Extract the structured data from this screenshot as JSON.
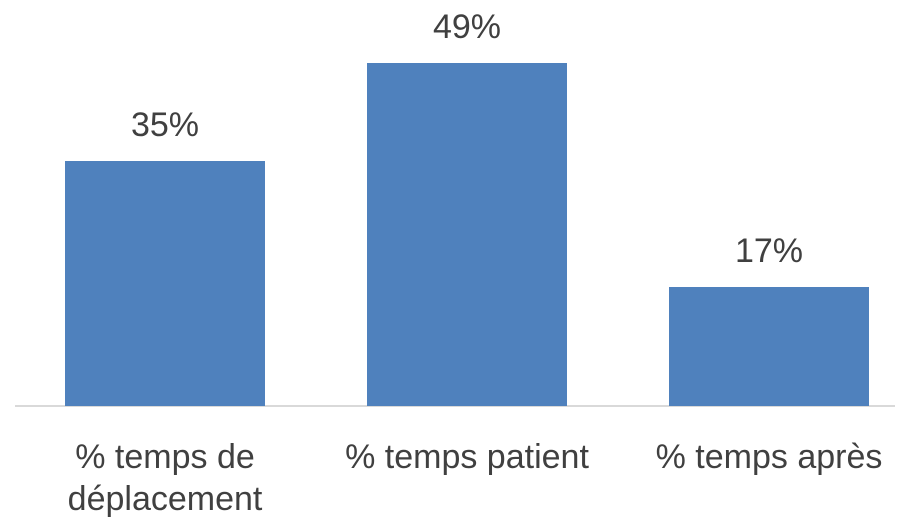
{
  "chart_data": {
    "type": "bar",
    "categories": [
      "% temps de déplacement",
      "% temps patient",
      "% temps après"
    ],
    "values": [
      35,
      49,
      17
    ],
    "value_labels": [
      "35%",
      "49%",
      "17%"
    ],
    "color": "#4f81bd"
  }
}
